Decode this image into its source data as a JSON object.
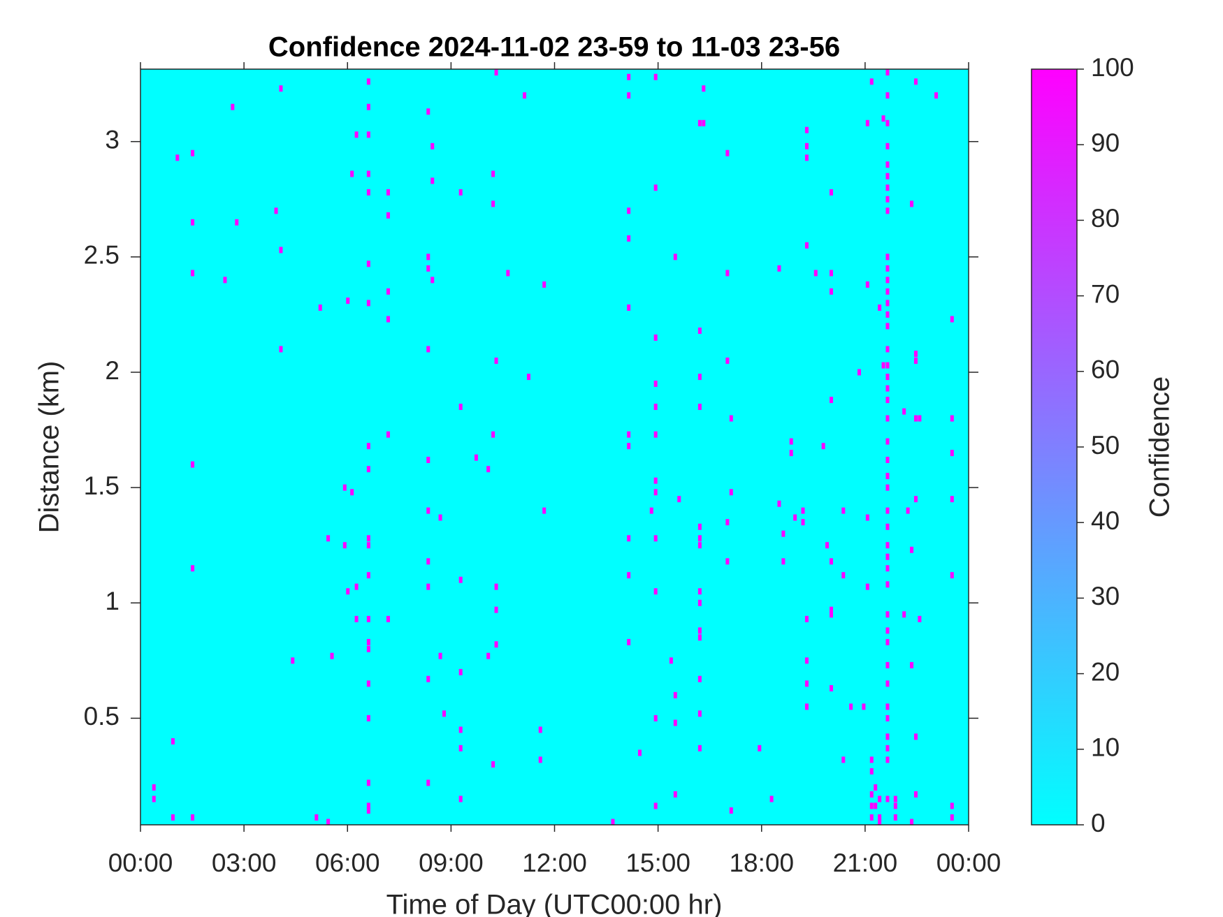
{
  "chart_data": {
    "type": "heatmap",
    "title": "Confidence 2024-11-02 23-59 to 11-03 23-56",
    "xlabel": "Time of Day (UTC00:00 hr)",
    "ylabel": "Distance (km)",
    "xlim": [
      0,
      24
    ],
    "xticks": [
      {
        "value": 0,
        "label": "00:00"
      },
      {
        "value": 3,
        "label": "03:00"
      },
      {
        "value": 6,
        "label": "06:00"
      },
      {
        "value": 9,
        "label": "09:00"
      },
      {
        "value": 12,
        "label": "12:00"
      },
      {
        "value": 15,
        "label": "15:00"
      },
      {
        "value": 18,
        "label": "18:00"
      },
      {
        "value": 21,
        "label": "21:00"
      },
      {
        "value": 24,
        "label": "00:00"
      }
    ],
    "ylim": [
      0.038,
      3.314
    ],
    "yticks": [
      0.5,
      1,
      1.5,
      2,
      2.5,
      3
    ],
    "background_value": 0,
    "colormap": [
      "#00ffff",
      "#ff00ff"
    ],
    "colorbar": {
      "label": "Confidence",
      "lim": [
        0,
        100
      ],
      "ticks": [
        0,
        10,
        20,
        30,
        40,
        50,
        60,
        70,
        80,
        90,
        100
      ]
    },
    "x": [
      4.07,
      2.67,
      1.07,
      1.51,
      1.51,
      2.79,
      3.93,
      4.07,
      1.51,
      2.45,
      5.21,
      6.01,
      4.07,
      1.51,
      1.51,
      0.39,
      0.39,
      0.94,
      0.94,
      1.51,
      4.41,
      5.1,
      5.44,
      5.55,
      5.44,
      5.92,
      5.92,
      6.13,
      6.01,
      6.26,
      6.26,
      6.13,
      6.26,
      6.61,
      6.61,
      6.61,
      6.61,
      6.61,
      6.61,
      6.61,
      6.61,
      6.61,
      6.61,
      6.61,
      6.61,
      6.61,
      6.61,
      6.61,
      6.61,
      6.61,
      6.61,
      6.61,
      6.61,
      7.18,
      7.18,
      7.18,
      7.18,
      7.18,
      7.18,
      8.34,
      8.46,
      8.46,
      8.34,
      8.34,
      8.46,
      8.34,
      9.28,
      9.28,
      8.34,
      8.34,
      8.69,
      8.34,
      8.34,
      9.28,
      8.69,
      8.34,
      9.28,
      8.8,
      9.28,
      9.28,
      8.34,
      9.28,
      10.22,
      10.22,
      9.73,
      10.08,
      10.22,
      10.31,
      10.31,
      10.31,
      10.08,
      10.31,
      10.65,
      10.31,
      11.13,
      11.25,
      11.7,
      11.7,
      11.59,
      11.59,
      10.22,
      13.69,
      14.15,
      14.15,
      14.15,
      14.15,
      14.15,
      14.15,
      14.15,
      14.15,
      14.15,
      14.15,
      14.93,
      14.93,
      14.93,
      14.93,
      14.93,
      14.93,
      14.93,
      14.93,
      14.81,
      14.93,
      14.93,
      14.93,
      14.93,
      14.47,
      15.5,
      15.61,
      15.38,
      15.5,
      15.5,
      15.5,
      16.21,
      16.21,
      16.21,
      16.21,
      16.21,
      16.21,
      16.21,
      16.21,
      16.21,
      16.21,
      16.21,
      16.21,
      16.21,
      16.21,
      16.32,
      16.32,
      17.01,
      17.01,
      17.01,
      17.12,
      17.12,
      17.01,
      17.01,
      17.12,
      17.94,
      18.29,
      18.51,
      18.51,
      18.63,
      18.63,
      18.86,
      18.86,
      18.97,
      19.2,
      19.2,
      19.31,
      19.31,
      19.31,
      19.31,
      19.31,
      19.31,
      19.31,
      19.31,
      19.57,
      20.02,
      20.02,
      20.02,
      20.02,
      19.79,
      19.9,
      20.02,
      20.02,
      20.02,
      20.02,
      20.37,
      20.37,
      20.37,
      20.59,
      20.83,
      21.07,
      21.07,
      21.07,
      21.07,
      20.96,
      21.19,
      21.42,
      21.53,
      21.53,
      21.65,
      21.65,
      21.65,
      21.65,
      21.65,
      21.65,
      21.65,
      21.65,
      21.65,
      21.65,
      21.65,
      21.65,
      21.65,
      21.65,
      21.65,
      21.65,
      21.65,
      21.65,
      21.65,
      21.65,
      21.65,
      21.65,
      21.65,
      21.65,
      21.65,
      21.65,
      21.65,
      21.65,
      21.65,
      21.65,
      21.65,
      21.65,
      21.65,
      21.65,
      21.65,
      21.65,
      21.65,
      21.65,
      21.65,
      21.65,
      21.65,
      21.65,
      21.65,
      21.19,
      21.19,
      21.19,
      21.3,
      21.3,
      21.42,
      21.42,
      21.42,
      21.19,
      21.19,
      21.88,
      21.88,
      21.88,
      22.13,
      22.13,
      22.24,
      22.35,
      22.35,
      22.35,
      22.35,
      22.47,
      22.47,
      22.47,
      22.58,
      22.47,
      22.58,
      22.47,
      22.47,
      22.47,
      23.06,
      23.52,
      23.52,
      23.52,
      23.52,
      23.52,
      23.52,
      23.52
    ],
    "y": [
      3.23,
      3.15,
      2.93,
      2.95,
      2.65,
      2.65,
      2.7,
      2.53,
      2.43,
      2.4,
      2.28,
      2.31,
      2.1,
      1.6,
      1.15,
      0.2,
      0.15,
      0.4,
      0.07,
      0.07,
      0.75,
      0.07,
      0.05,
      0.77,
      1.28,
      1.25,
      1.5,
      1.48,
      1.05,
      1.07,
      0.93,
      2.86,
      3.03,
      3.26,
      3.15,
      3.03,
      2.86,
      2.78,
      2.47,
      2.3,
      1.68,
      1.58,
      1.28,
      1.25,
      1.12,
      0.93,
      0.83,
      0.8,
      0.65,
      0.5,
      0.22,
      0.12,
      0.1,
      2.78,
      2.68,
      2.35,
      2.23,
      1.73,
      0.93,
      3.13,
      2.98,
      2.83,
      2.5,
      2.45,
      2.4,
      2.1,
      2.78,
      1.85,
      1.62,
      1.4,
      1.37,
      1.18,
      1.07,
      1.1,
      0.77,
      0.67,
      0.7,
      0.52,
      0.45,
      0.37,
      0.22,
      0.15,
      2.86,
      2.73,
      1.63,
      1.58,
      1.73,
      1.07,
      0.97,
      0.82,
      0.77,
      2.05,
      2.43,
      3.3,
      3.2,
      1.98,
      2.38,
      1.4,
      0.45,
      0.32,
      0.3,
      0.05,
      3.28,
      3.2,
      2.7,
      2.58,
      2.28,
      1.73,
      1.68,
      1.28,
      1.12,
      0.83,
      3.28,
      2.8,
      2.15,
      1.95,
      1.85,
      1.73,
      1.53,
      1.48,
      1.4,
      1.28,
      1.05,
      0.5,
      0.12,
      0.35,
      2.5,
      1.45,
      0.75,
      0.6,
      0.48,
      0.17,
      3.08,
      2.18,
      1.98,
      1.85,
      1.33,
      1.28,
      1.25,
      1.05,
      1.0,
      0.88,
      0.85,
      0.67,
      0.52,
      0.37,
      3.23,
      3.08,
      2.95,
      2.43,
      2.05,
      1.8,
      1.48,
      1.35,
      1.18,
      0.1,
      0.37,
      0.15,
      2.45,
      1.43,
      1.3,
      1.18,
      1.7,
      1.65,
      1.37,
      1.4,
      1.35,
      3.05,
      2.98,
      2.93,
      2.55,
      0.93,
      0.75,
      0.65,
      0.55,
      2.43,
      2.78,
      2.43,
      2.35,
      1.88,
      1.68,
      1.25,
      1.18,
      0.97,
      0.95,
      0.63,
      1.4,
      1.12,
      0.32,
      0.55,
      2.0,
      3.08,
      2.38,
      1.37,
      1.07,
      0.55,
      3.26,
      2.28,
      3.1,
      2.03,
      3.3,
      3.2,
      3.08,
      2.98,
      2.9,
      2.85,
      2.8,
      2.75,
      2.7,
      2.5,
      2.45,
      2.4,
      2.35,
      2.3,
      2.25,
      2.2,
      2.1,
      2.03,
      1.98,
      1.93,
      1.88,
      1.8,
      1.7,
      1.62,
      1.55,
      1.5,
      1.4,
      1.33,
      1.25,
      1.2,
      1.15,
      1.08,
      0.95,
      0.88,
      0.83,
      0.73,
      0.65,
      0.55,
      0.5,
      0.42,
      0.37,
      0.32,
      0.15,
      0.17,
      0.12,
      0.07,
      0.2,
      0.12,
      0.15,
      0.07,
      0.05,
      0.27,
      0.32,
      0.12,
      0.07,
      0.15,
      1.83,
      0.95,
      1.4,
      2.73,
      1.23,
      0.73,
      0.05,
      2.08,
      2.05,
      1.8,
      1.8,
      1.45,
      0.93,
      0.42,
      0.17,
      3.26,
      3.2,
      2.23,
      1.8,
      1.65,
      1.45,
      1.12,
      0.12,
      0.07
    ],
    "values": [
      100,
      100,
      100,
      100,
      100,
      100,
      100,
      100,
      100,
      100,
      100,
      100,
      100,
      100,
      100,
      100,
      100,
      100,
      100,
      100,
      100,
      100,
      100,
      100,
      100,
      100,
      100,
      100,
      100,
      100,
      100,
      100,
      100,
      100,
      100,
      100,
      100,
      100,
      100,
      100,
      100,
      100,
      100,
      100,
      100,
      100,
      100,
      100,
      100,
      100,
      100,
      100,
      100,
      100,
      100,
      100,
      100,
      100,
      100,
      100,
      100,
      100,
      100,
      100,
      100,
      100,
      100,
      100,
      100,
      100,
      100,
      100,
      100,
      100,
      100,
      100,
      100,
      100,
      100,
      100,
      100,
      100,
      100,
      100,
      100,
      100,
      100,
      100,
      100,
      100,
      100,
      100,
      100,
      100,
      100,
      100,
      100,
      100,
      100,
      100,
      100,
      100,
      100,
      100,
      100,
      100,
      100,
      100,
      100,
      100,
      100,
      100,
      100,
      100,
      100,
      100,
      100,
      100,
      100,
      100,
      100,
      100,
      100,
      100,
      100,
      100,
      100,
      100,
      100,
      100,
      100,
      100,
      100,
      100,
      100,
      100,
      100,
      100,
      100,
      100,
      100,
      100,
      100,
      100,
      100,
      100,
      100,
      100,
      100,
      100,
      100,
      100,
      100,
      100,
      100,
      100,
      100,
      100,
      100,
      100,
      100,
      100,
      100,
      100,
      100,
      100,
      100,
      100,
      100,
      100,
      100,
      100,
      100,
      100,
      100,
      100,
      100,
      100,
      100,
      100,
      100,
      100,
      100,
      100,
      100,
      100,
      100,
      100,
      100,
      100,
      100,
      100,
      100,
      100,
      100,
      100,
      100,
      100,
      100,
      100,
      100,
      100,
      100,
      100,
      100,
      100,
      100,
      100,
      100,
      100,
      100,
      100,
      100,
      100,
      100,
      100,
      100,
      100,
      100,
      100,
      100,
      100,
      100,
      100,
      100,
      100,
      100,
      100,
      100,
      100,
      100,
      100,
      100,
      100,
      100,
      100,
      100,
      100,
      100,
      100,
      100,
      100,
      100,
      100,
      100,
      100,
      100,
      100,
      100,
      100,
      100,
      100,
      100,
      100,
      100,
      100,
      100,
      100,
      100,
      100,
      100,
      100,
      100,
      100,
      100,
      100,
      100,
      100,
      100,
      100,
      100,
      100,
      100,
      100,
      100,
      100,
      100,
      100,
      100,
      100
    ]
  }
}
